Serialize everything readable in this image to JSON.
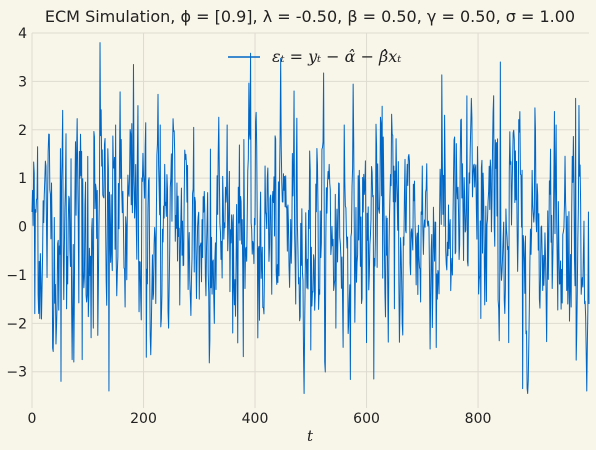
{
  "chart_data": {
    "type": "line",
    "title": "ECM Simulation, ϕ = [0.9], λ = -0.50, β = 0.50, γ = 0.50, σ = 1.00",
    "xlabel": "t",
    "ylabel": "",
    "xlim": [
      0,
      999
    ],
    "ylim": [
      -3.75,
      4.0
    ],
    "xticks": [
      0,
      200,
      400,
      600,
      800
    ],
    "yticks": [
      -3,
      -2,
      -1,
      0,
      1,
      2,
      3,
      4
    ],
    "grid": true,
    "legend_position": "top-center",
    "line_color": "#0066c5",
    "series": [
      {
        "name": "εₜ = yₜ − α̂ − β̂xₜ",
        "n_points": 1000,
        "summary_points": [
          [
            0,
            0.3
          ],
          [
            5,
            -1.8
          ],
          [
            10,
            1.65
          ],
          [
            14,
            -1.9
          ],
          [
            25,
            1.25
          ],
          [
            35,
            0.9
          ],
          [
            45,
            -1.6
          ],
          [
            52,
            -3.2
          ],
          [
            55,
            2.4
          ],
          [
            62,
            -1.7
          ],
          [
            70,
            1.4
          ],
          [
            75,
            -2.8
          ],
          [
            85,
            1.55
          ],
          [
            90,
            -2.75
          ],
          [
            100,
            1.45
          ],
          [
            110,
            -2.1
          ],
          [
            118,
            -2.25
          ],
          [
            122,
            3.8
          ],
          [
            130,
            1.7
          ],
          [
            138,
            -3.4
          ],
          [
            150,
            2.1
          ],
          [
            160,
            1.8
          ],
          [
            170,
            -1.1
          ],
          [
            178,
            0.45
          ],
          [
            182,
            3.35
          ],
          [
            190,
            2.5
          ],
          [
            205,
            -2.7
          ],
          [
            215,
            -1.3
          ],
          [
            230,
            2.1
          ],
          [
            245,
            -2.1
          ],
          [
            260,
            0.9
          ],
          [
            280,
            -1.3
          ],
          [
            290,
            2.05
          ],
          [
            300,
            -1.5
          ],
          [
            320,
            1.6
          ],
          [
            330,
            -1.3
          ],
          [
            350,
            2.1
          ],
          [
            360,
            -2.2
          ],
          [
            380,
            1.8
          ],
          [
            405,
            -2.3
          ],
          [
            430,
            -1.4
          ],
          [
            445,
            1.9
          ],
          [
            470,
            2.8
          ],
          [
            500,
            -2.55
          ],
          [
            520,
            1.6
          ],
          [
            545,
            -2.1
          ],
          [
            560,
            2.1
          ],
          [
            575,
            1.2
          ],
          [
            600,
            -2.4
          ],
          [
            613,
            -3.15
          ],
          [
            630,
            1.85
          ],
          [
            650,
            -1.7
          ],
          [
            660,
            -1.65
          ],
          [
            700,
            1.25
          ],
          [
            725,
            -2.5
          ],
          [
            740,
            2.3
          ],
          [
            780,
            2.7
          ],
          [
            800,
            0.9
          ],
          [
            805,
            -1.9
          ],
          [
            815,
            -1.55
          ],
          [
            840,
            3.4
          ],
          [
            855,
            -2.4
          ],
          [
            880,
            -3.35
          ],
          [
            910,
            -1.5
          ],
          [
            930,
            1.6
          ],
          [
            940,
            2.1
          ],
          [
            975,
            2.65
          ],
          [
            985,
            -1.4
          ],
          [
            999,
            -1.6
          ]
        ]
      }
    ]
  }
}
